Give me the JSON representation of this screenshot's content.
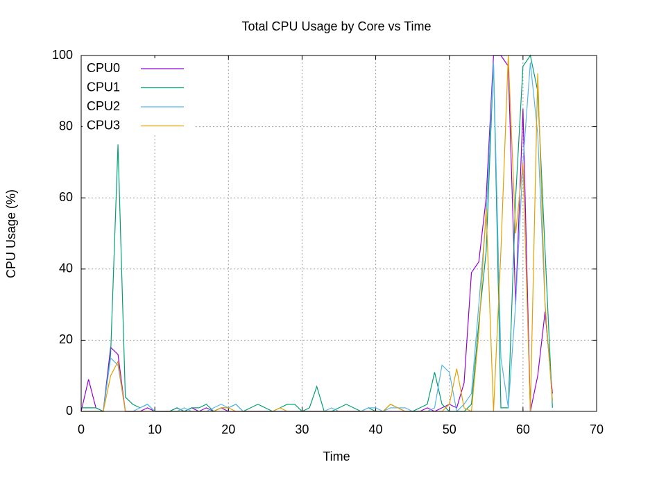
{
  "chart_data": {
    "type": "line",
    "title": "Total CPU Usage by Core vs Time",
    "xlabel": "Time",
    "ylabel": "CPU Usage (%)",
    "x": [
      0,
      1,
      2,
      3,
      4,
      5,
      6,
      7,
      8,
      9,
      10,
      11,
      12,
      13,
      14,
      15,
      16,
      17,
      18,
      19,
      20,
      21,
      22,
      23,
      24,
      25,
      26,
      27,
      28,
      29,
      30,
      31,
      32,
      33,
      34,
      35,
      36,
      37,
      38,
      39,
      40,
      41,
      42,
      43,
      44,
      45,
      46,
      47,
      48,
      49,
      50,
      51,
      52,
      53,
      54,
      55,
      56,
      57,
      58,
      59,
      60,
      61,
      62,
      63,
      64
    ],
    "series": [
      {
        "name": "CPU0",
        "color": "#9400d3",
        "values": [
          0,
          9,
          1,
          0,
          18,
          16,
          0,
          0,
          0,
          1,
          0,
          0,
          0,
          1,
          0,
          1,
          0,
          1,
          0,
          1,
          0,
          0,
          0,
          0,
          0,
          0,
          0,
          0,
          0,
          0,
          0,
          0,
          0,
          0,
          0,
          0,
          0,
          0,
          0,
          0,
          0,
          0,
          0,
          0,
          0,
          0,
          0,
          1,
          0,
          1,
          2,
          1,
          8,
          39,
          42,
          60,
          100,
          100,
          97,
          30,
          85,
          0,
          10,
          28,
          5
        ]
      },
      {
        "name": "CPU1",
        "color": "#009e73",
        "values": [
          1,
          1,
          1,
          0,
          16,
          75,
          4,
          2,
          1,
          2,
          0,
          0,
          0,
          1,
          0,
          1,
          1,
          2,
          0,
          1,
          1,
          2,
          0,
          1,
          2,
          1,
          0,
          1,
          2,
          2,
          0,
          1,
          7,
          0,
          0,
          1,
          2,
          1,
          0,
          1,
          0,
          0,
          2,
          1,
          0,
          0,
          1,
          2,
          11,
          2,
          0,
          0,
          0,
          2,
          25,
          45,
          98,
          1,
          1,
          60,
          97,
          100,
          90,
          45,
          1
        ]
      },
      {
        "name": "CPU2",
        "color": "#56b4e9",
        "values": [
          0,
          0,
          0,
          0,
          15,
          13,
          0,
          0,
          1,
          2,
          0,
          0,
          0,
          0,
          1,
          0,
          0,
          0,
          1,
          2,
          1,
          2,
          0,
          0,
          0,
          0,
          0,
          0,
          0,
          0,
          0,
          0,
          0,
          0,
          1,
          0,
          0,
          0,
          0,
          1,
          1,
          0,
          1,
          1,
          1,
          0,
          0,
          0,
          1,
          13,
          11,
          0,
          2,
          5,
          30,
          55,
          98,
          15,
          1,
          30,
          70,
          98,
          78,
          30,
          3
        ]
      },
      {
        "name": "CPU3",
        "color": "#e69f00",
        "values": [
          0,
          0,
          0,
          0,
          10,
          14,
          0,
          0,
          0,
          0,
          0,
          0,
          0,
          0,
          0,
          0,
          0,
          0,
          0,
          1,
          1,
          0,
          0,
          0,
          0,
          0,
          0,
          1,
          0,
          0,
          0,
          0,
          0,
          0,
          0,
          0,
          0,
          0,
          0,
          0,
          0,
          0,
          2,
          1,
          0,
          0,
          0,
          0,
          0,
          0,
          2,
          12,
          1,
          0,
          22,
          57,
          0,
          45,
          100,
          50,
          70,
          0,
          95,
          30,
          3
        ]
      }
    ],
    "xlim": [
      0,
      70
    ],
    "xticks": [
      0,
      10,
      20,
      30,
      40,
      50,
      60,
      70
    ],
    "ylim": [
      0,
      100
    ],
    "yticks": [
      0,
      20,
      40,
      60,
      80,
      100
    ],
    "grid": true,
    "legend": "top-left"
  }
}
